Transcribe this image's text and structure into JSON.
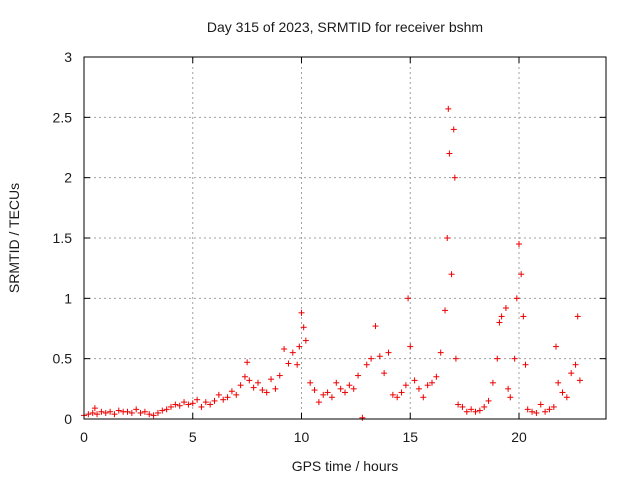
{
  "chart_data": {
    "type": "scatter",
    "title": "Day 315 of 2023, SRMTID for receiver bshm",
    "xlabel": "GPS time / hours",
    "ylabel": "SRMTID / TECUs",
    "xlim": [
      0,
      24
    ],
    "ylim": [
      0,
      3
    ],
    "xticks": [
      0,
      5,
      10,
      15,
      20
    ],
    "xtick_labels": [
      "0",
      "5",
      "10",
      "15",
      "20"
    ],
    "yticks": [
      0,
      0.5,
      1,
      1.5,
      2,
      2.5,
      3
    ],
    "ytick_labels": [
      "0",
      "0.5",
      "1",
      "1.5",
      "2",
      "2.5",
      "3"
    ],
    "grid": true,
    "marker": "+",
    "series": [
      {
        "name": "SRMTID",
        "color": "#ee0000",
        "points": [
          [
            0.0,
            0.03
          ],
          [
            0.2,
            0.04
          ],
          [
            0.4,
            0.05
          ],
          [
            0.5,
            0.09
          ],
          [
            0.6,
            0.04
          ],
          [
            0.8,
            0.06
          ],
          [
            1.0,
            0.05
          ],
          [
            1.2,
            0.06
          ],
          [
            1.4,
            0.04
          ],
          [
            1.6,
            0.07
          ],
          [
            1.8,
            0.06
          ],
          [
            2.0,
            0.06
          ],
          [
            2.2,
            0.05
          ],
          [
            2.4,
            0.08
          ],
          [
            2.6,
            0.05
          ],
          [
            2.8,
            0.06
          ],
          [
            3.0,
            0.04
          ],
          [
            3.2,
            0.03
          ],
          [
            3.4,
            0.05
          ],
          [
            3.6,
            0.07
          ],
          [
            3.8,
            0.08
          ],
          [
            4.0,
            0.1
          ],
          [
            4.2,
            0.12
          ],
          [
            4.4,
            0.11
          ],
          [
            4.6,
            0.14
          ],
          [
            4.8,
            0.12
          ],
          [
            5.0,
            0.13
          ],
          [
            5.2,
            0.16
          ],
          [
            5.4,
            0.1
          ],
          [
            5.6,
            0.14
          ],
          [
            5.8,
            0.12
          ],
          [
            6.0,
            0.15
          ],
          [
            6.2,
            0.2
          ],
          [
            6.4,
            0.16
          ],
          [
            6.6,
            0.18
          ],
          [
            6.8,
            0.23
          ],
          [
            7.0,
            0.2
          ],
          [
            7.2,
            0.28
          ],
          [
            7.4,
            0.35
          ],
          [
            7.5,
            0.47
          ],
          [
            7.6,
            0.32
          ],
          [
            7.8,
            0.26
          ],
          [
            8.0,
            0.3
          ],
          [
            8.2,
            0.24
          ],
          [
            8.4,
            0.22
          ],
          [
            8.6,
            0.33
          ],
          [
            8.8,
            0.25
          ],
          [
            9.0,
            0.36
          ],
          [
            9.2,
            0.58
          ],
          [
            9.4,
            0.46
          ],
          [
            9.6,
            0.55
          ],
          [
            9.8,
            0.45
          ],
          [
            9.9,
            0.6
          ],
          [
            10.0,
            0.88
          ],
          [
            10.1,
            0.76
          ],
          [
            10.2,
            0.65
          ],
          [
            10.4,
            0.3
          ],
          [
            10.6,
            0.24
          ],
          [
            10.8,
            0.14
          ],
          [
            11.0,
            0.2
          ],
          [
            11.2,
            0.22
          ],
          [
            11.4,
            0.18
          ],
          [
            11.6,
            0.3
          ],
          [
            11.8,
            0.25
          ],
          [
            12.0,
            0.22
          ],
          [
            12.2,
            0.28
          ],
          [
            12.4,
            0.25
          ],
          [
            12.6,
            0.36
          ],
          [
            12.8,
            0.01
          ],
          [
            13.0,
            0.45
          ],
          [
            13.2,
            0.5
          ],
          [
            13.4,
            0.77
          ],
          [
            13.6,
            0.52
          ],
          [
            13.8,
            0.38
          ],
          [
            14.0,
            0.55
          ],
          [
            14.2,
            0.2
          ],
          [
            14.4,
            0.18
          ],
          [
            14.6,
            0.22
          ],
          [
            14.8,
            0.28
          ],
          [
            14.9,
            1.0
          ],
          [
            15.0,
            0.6
          ],
          [
            15.2,
            0.32
          ],
          [
            15.4,
            0.25
          ],
          [
            15.6,
            0.18
          ],
          [
            15.8,
            0.28
          ],
          [
            16.0,
            0.3
          ],
          [
            16.2,
            0.35
          ],
          [
            16.4,
            0.55
          ],
          [
            16.6,
            0.9
          ],
          [
            16.7,
            1.5
          ],
          [
            16.75,
            2.57
          ],
          [
            16.8,
            2.2
          ],
          [
            16.9,
            1.2
          ],
          [
            17.0,
            2.4
          ],
          [
            17.05,
            2.0
          ],
          [
            17.1,
            0.5
          ],
          [
            17.2,
            0.12
          ],
          [
            17.4,
            0.1
          ],
          [
            17.6,
            0.06
          ],
          [
            17.8,
            0.08
          ],
          [
            18.0,
            0.06
          ],
          [
            18.2,
            0.07
          ],
          [
            18.4,
            0.1
          ],
          [
            18.6,
            0.15
          ],
          [
            18.8,
            0.3
          ],
          [
            19.0,
            0.5
          ],
          [
            19.1,
            0.8
          ],
          [
            19.2,
            0.85
          ],
          [
            19.4,
            0.92
          ],
          [
            19.5,
            0.25
          ],
          [
            19.6,
            0.18
          ],
          [
            19.8,
            0.5
          ],
          [
            19.9,
            1.0
          ],
          [
            20.0,
            1.45
          ],
          [
            20.1,
            1.2
          ],
          [
            20.2,
            0.85
          ],
          [
            20.3,
            0.45
          ],
          [
            20.4,
            0.08
          ],
          [
            20.6,
            0.06
          ],
          [
            20.8,
            0.05
          ],
          [
            21.0,
            0.12
          ],
          [
            21.2,
            0.06
          ],
          [
            21.4,
            0.08
          ],
          [
            21.6,
            0.1
          ],
          [
            21.7,
            0.6
          ],
          [
            21.8,
            0.3
          ],
          [
            22.0,
            0.22
          ],
          [
            22.2,
            0.18
          ],
          [
            22.4,
            0.38
          ],
          [
            22.6,
            0.45
          ],
          [
            22.7,
            0.85
          ],
          [
            22.8,
            0.32
          ]
        ]
      }
    ]
  }
}
